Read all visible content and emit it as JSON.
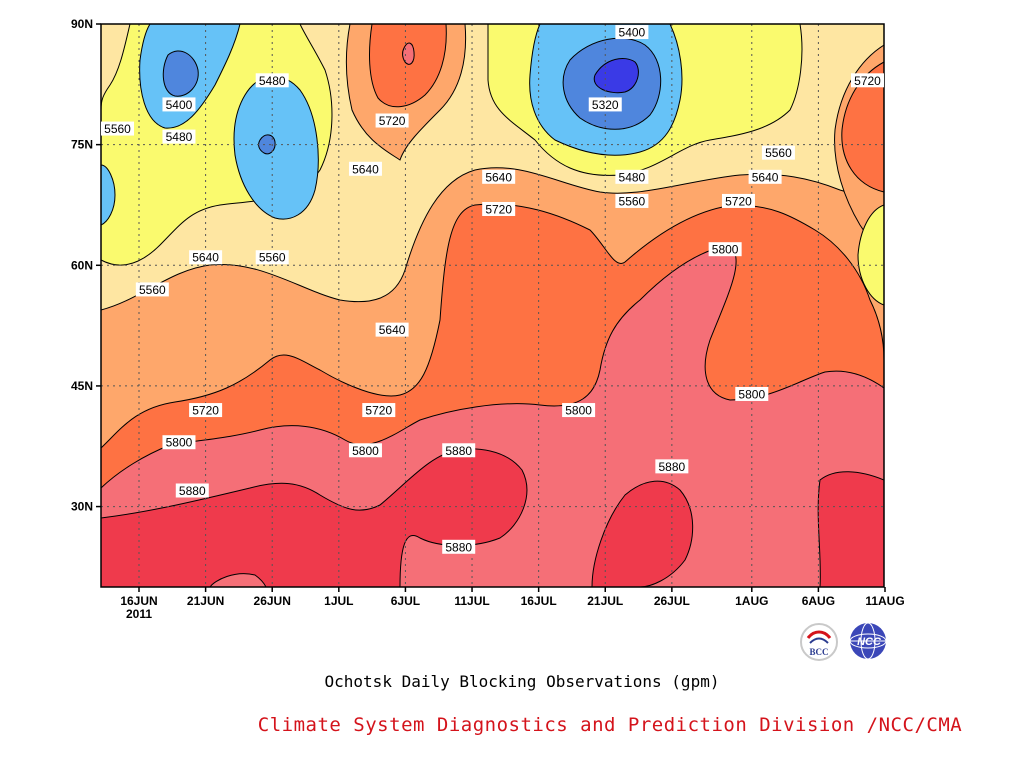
{
  "chart_data": {
    "type": "heatmap",
    "title": "Ochotsk Daily Blocking Observations (gpm)",
    "subtitle": "Climate System Diagnostics and Prediction Division /NCC/CMA",
    "xlabel": "",
    "ylabel": "",
    "x_ticks": [
      "16JUN",
      "21JUN",
      "26JUN",
      "1JUL",
      "6JUL",
      "11JUL",
      "16JUL",
      "21JUL",
      "26JUL",
      "1AUG",
      "6AUG",
      "11AUG"
    ],
    "x_year_label": "2011",
    "y_ticks": [
      "90N",
      "75N",
      "60N",
      "45N",
      "30N"
    ],
    "y_values": [
      90,
      75,
      60,
      45,
      30
    ],
    "ylim": [
      20,
      90
    ],
    "grid": true,
    "contour_levels": [
      5320,
      5400,
      5480,
      5560,
      5640,
      5720,
      5800,
      5880
    ],
    "colors": {
      "below_5320": "#3a3ae6",
      "5320_5400": "#4f86dd",
      "5400_5480": "#66c2f7",
      "5480_5560": "#fafa6e",
      "5560_5640": "#fee6a2",
      "5640_5720": "#fea76b",
      "5720_5800": "#fe7243",
      "5800_5880": "#f56f77",
      "above_5880": "#ef3a4c"
    },
    "contour_labels": [
      {
        "text": "5400",
        "date": "23JUL",
        "lat": 89
      },
      {
        "text": "5720",
        "date": "11AUG",
        "lat": 83
      },
      {
        "text": "5480",
        "date": "26JUN",
        "lat": 83
      },
      {
        "text": "5400",
        "date": "19JUN",
        "lat": 80
      },
      {
        "text": "5320",
        "date": "21JUL",
        "lat": 80
      },
      {
        "text": "5720",
        "date": "5JUL",
        "lat": 78
      },
      {
        "text": "5560",
        "date": "13JUN",
        "lat": 77
      },
      {
        "text": "5480",
        "date": "19JUN",
        "lat": 76
      },
      {
        "text": "5560",
        "date": "3AUG",
        "lat": 74
      },
      {
        "text": "5640",
        "date": "3JUL",
        "lat": 72
      },
      {
        "text": "5640",
        "date": "13JUL",
        "lat": 71
      },
      {
        "text": "5480",
        "date": "23JUL",
        "lat": 71
      },
      {
        "text": "5640",
        "date": "2AUG",
        "lat": 71
      },
      {
        "text": "5560",
        "date": "23JUL",
        "lat": 68
      },
      {
        "text": "5720",
        "date": "31JUL",
        "lat": 68
      },
      {
        "text": "5720",
        "date": "13JUL",
        "lat": 67
      },
      {
        "text": "5800",
        "date": "30JUL",
        "lat": 62
      },
      {
        "text": "5640",
        "date": "21JUN",
        "lat": 61
      },
      {
        "text": "5560",
        "date": "26JUN",
        "lat": 61
      },
      {
        "text": "5560",
        "date": "17JUN",
        "lat": 57
      },
      {
        "text": "5640",
        "date": "5JUL",
        "lat": 52
      },
      {
        "text": "5800",
        "date": "1AUG",
        "lat": 44
      },
      {
        "text": "5720",
        "date": "21JUN",
        "lat": 42
      },
      {
        "text": "5800",
        "date": "19JUL",
        "lat": 42
      },
      {
        "text": "5720",
        "date": "4JUL",
        "lat": 42
      },
      {
        "text": "5800",
        "date": "19JUN",
        "lat": 38
      },
      {
        "text": "5800",
        "date": "3JUL",
        "lat": 37
      },
      {
        "text": "5880",
        "date": "10JUL",
        "lat": 37
      },
      {
        "text": "5880",
        "date": "26JUL",
        "lat": 35
      },
      {
        "text": "5880",
        "date": "20JUN",
        "lat": 32
      },
      {
        "text": "5880",
        "date": "10JUL",
        "lat": 25
      }
    ]
  },
  "logos": {
    "bcc_text": "BCC",
    "ncc_text": "NCC"
  }
}
